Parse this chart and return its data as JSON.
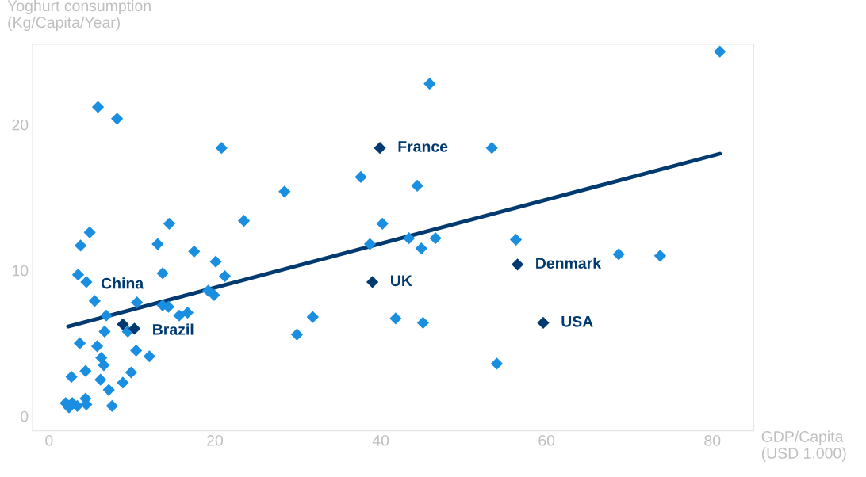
{
  "chart_data": {
    "type": "scatter",
    "xlabel": "GDP/Capita\n(USD 1.000)",
    "ylabel": "Yoghurt consumption\n(Kg/Capita/Year)",
    "xlim": [
      -2,
      85
    ],
    "xticks": [
      0,
      20,
      40,
      60,
      80
    ],
    "ylim": [
      -1,
      25.5
    ],
    "yticks": [
      0,
      10,
      20
    ],
    "grid": false,
    "legend": false,
    "marker": "diamond",
    "series": [
      {
        "color": "#1a8ee0",
        "x": [
          5.9,
          8.2,
          20.8,
          14.5,
          23.5,
          4.9,
          3.8,
          13.1,
          17.5,
          20.1,
          3.5,
          13.7,
          21.2,
          4.5,
          5.5,
          10.6,
          13.7,
          14.4,
          15.7,
          16.7,
          19.2,
          19.9,
          6.9,
          9.5,
          6.7,
          3.7,
          5.8,
          10.5,
          12.1,
          6.3,
          6.6,
          2.7,
          4.4,
          6.2,
          9.9,
          8.9,
          7.2,
          2.0,
          2.8,
          2.4,
          3.4,
          4.4,
          4.5,
          7.6,
          45.9,
          53.4,
          37.6,
          44.4,
          28.4,
          40.2,
          38.7,
          43.4,
          46.6,
          44.9,
          56.3,
          31.8,
          29.9,
          41.8,
          45.1,
          54.0,
          80.9,
          68.7,
          73.7
        ],
        "values": [
          21.2,
          20.4,
          18.4,
          13.2,
          13.4,
          12.6,
          11.7,
          11.8,
          11.3,
          10.6,
          9.7,
          9.8,
          9.6,
          9.2,
          7.9,
          7.8,
          7.6,
          7.5,
          6.9,
          7.1,
          8.6,
          8.3,
          6.9,
          5.8,
          5.8,
          5.0,
          4.8,
          4.5,
          4.1,
          4.0,
          3.5,
          2.7,
          3.1,
          2.5,
          3.0,
          2.3,
          1.8,
          0.9,
          0.9,
          0.6,
          0.7,
          1.2,
          0.8,
          0.7,
          22.8,
          18.4,
          16.4,
          15.8,
          15.4,
          13.2,
          11.8,
          12.2,
          12.2,
          11.5,
          12.1,
          6.8,
          5.6,
          6.7,
          6.4,
          3.6,
          25.0,
          11.1,
          11.0
        ]
      },
      {
        "color": "#003a70",
        "x": [
          8.9,
          10.3,
          39.9,
          39.0,
          56.5,
          59.6
        ],
        "values": [
          6.3,
          6.0,
          18.4,
          9.2,
          10.4,
          6.4
        ]
      },
      {
        "type": "line",
        "color": "#003a70",
        "marker": "none",
        "x": [
          2.3,
          80.9
        ],
        "values": [
          6.15,
          18.0
        ]
      }
    ],
    "annotations": [
      {
        "text": "China",
        "x": 8.9,
        "y": 6.3
      },
      {
        "text": "Brazil",
        "x": 10.3,
        "y": 6.0
      },
      {
        "text": "France",
        "x": 39.9,
        "y": 18.4
      },
      {
        "text": "UK",
        "x": 39.0,
        "y": 9.2
      },
      {
        "text": "Denmark",
        "x": 56.5,
        "y": 10.4
      },
      {
        "text": "USA",
        "x": 59.6,
        "y": 6.4
      }
    ]
  }
}
